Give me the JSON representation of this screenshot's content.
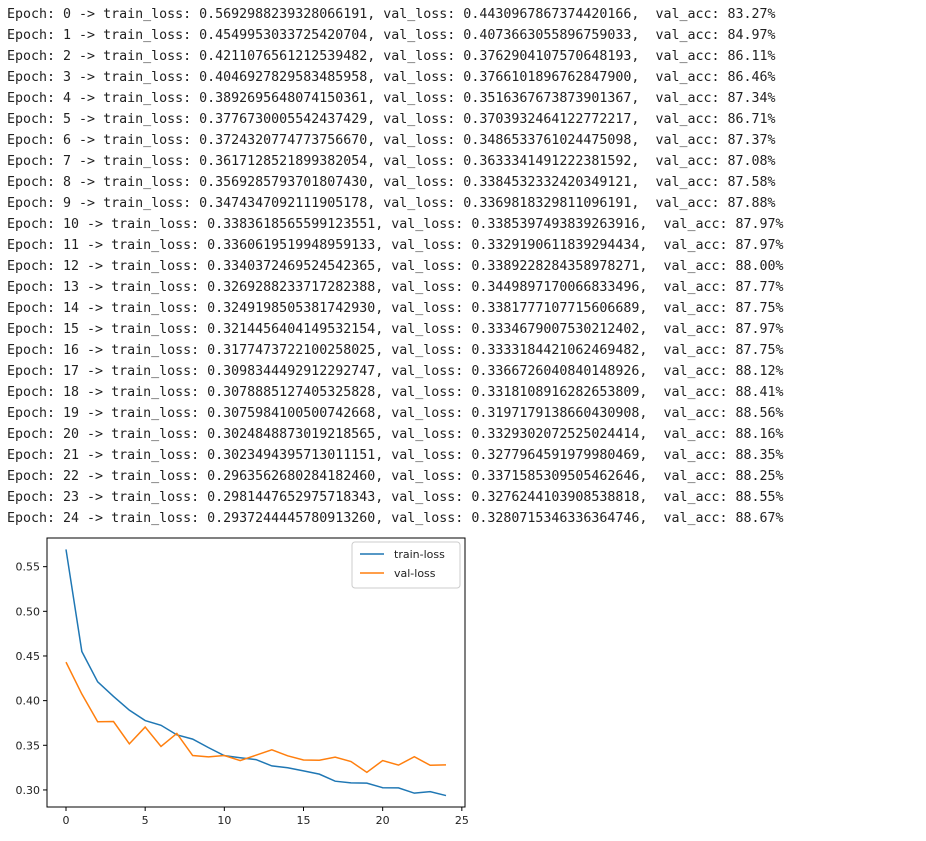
{
  "log": {
    "lines": [
      "Epoch: 0 -> train_loss: 0.5692988239328066191, val_loss: 0.4430967867374420166,  val_acc: 83.27%",
      "Epoch: 1 -> train_loss: 0.4549953033725420704, val_loss: 0.4073663055896759033,  val_acc: 84.97%",
      "Epoch: 2 -> train_loss: 0.4211076561212539482, val_loss: 0.3762904107570648193,  val_acc: 86.11%",
      "Epoch: 3 -> train_loss: 0.4046927829583485958, val_loss: 0.3766101896762847900,  val_acc: 86.46%",
      "Epoch: 4 -> train_loss: 0.3892695648074150361, val_loss: 0.3516367673873901367,  val_acc: 87.34%",
      "Epoch: 5 -> train_loss: 0.3776730005542437429, val_loss: 0.3703932464122772217,  val_acc: 86.71%",
      "Epoch: 6 -> train_loss: 0.3724320774773756670, val_loss: 0.3486533761024475098,  val_acc: 87.37%",
      "Epoch: 7 -> train_loss: 0.3617128521899382054, val_loss: 0.3633341491222381592,  val_acc: 87.08%",
      "Epoch: 8 -> train_loss: 0.3569285793701807430, val_loss: 0.3384532332420349121,  val_acc: 87.58%",
      "Epoch: 9 -> train_loss: 0.3474347092111905178, val_loss: 0.3369818329811096191,  val_acc: 87.88%",
      "Epoch: 10 -> train_loss: 0.3383618565599123551, val_loss: 0.3385397493839263916,  val_acc: 87.97%",
      "Epoch: 11 -> train_loss: 0.3360619519948959133, val_loss: 0.3329190611839294434,  val_acc: 87.97%",
      "Epoch: 12 -> train_loss: 0.3340372469524542365, val_loss: 0.3389228284358978271,  val_acc: 88.00%",
      "Epoch: 13 -> train_loss: 0.3269288233717282388, val_loss: 0.3449897170066833496,  val_acc: 87.77%",
      "Epoch: 14 -> train_loss: 0.3249198505381742930, val_loss: 0.3381777107715606689,  val_acc: 87.75%",
      "Epoch: 15 -> train_loss: 0.3214456404149532154, val_loss: 0.3334679007530212402,  val_acc: 87.97%",
      "Epoch: 16 -> train_loss: 0.3177473722100258025, val_loss: 0.3333184421062469482,  val_acc: 87.75%",
      "Epoch: 17 -> train_loss: 0.3098344492912292747, val_loss: 0.3366726040840148926,  val_acc: 88.12%",
      "Epoch: 18 -> train_loss: 0.3078885127405325828, val_loss: 0.3318108916282653809,  val_acc: 88.41%",
      "Epoch: 19 -> train_loss: 0.3075984100500742668, val_loss: 0.3197179138660430908,  val_acc: 88.56%",
      "Epoch: 20 -> train_loss: 0.3024848873019218565, val_loss: 0.3329302072525024414,  val_acc: 88.16%",
      "Epoch: 21 -> train_loss: 0.3023494395713011151, val_loss: 0.3277964591979980469,  val_acc: 88.35%",
      "Epoch: 22 -> train_loss: 0.2963562680284182460, val_loss: 0.3371585309505462646,  val_acc: 88.25%",
      "Epoch: 23 -> train_loss: 0.2981447652975718343, val_loss: 0.3276244103908538818,  val_acc: 88.55%",
      "Epoch: 24 -> train_loss: 0.2937244445780913260, val_loss: 0.3280715346336364746,  val_acc: 88.67%"
    ]
  },
  "chart_data": {
    "type": "line",
    "x": [
      0,
      1,
      2,
      3,
      4,
      5,
      6,
      7,
      8,
      9,
      10,
      11,
      12,
      13,
      14,
      15,
      16,
      17,
      18,
      19,
      20,
      21,
      22,
      23,
      24
    ],
    "series": [
      {
        "name": "train-loss",
        "color": "#1f77b4",
        "values": [
          0.5693,
          0.455,
          0.4211,
          0.4047,
          0.3893,
          0.3777,
          0.3724,
          0.3617,
          0.3569,
          0.3474,
          0.3384,
          0.3361,
          0.334,
          0.3269,
          0.3249,
          0.3214,
          0.3177,
          0.3098,
          0.3079,
          0.3076,
          0.3025,
          0.3023,
          0.2964,
          0.2981,
          0.2937
        ]
      },
      {
        "name": "val-loss",
        "color": "#ff7f0e",
        "values": [
          0.4431,
          0.4074,
          0.3763,
          0.3766,
          0.3516,
          0.3704,
          0.3487,
          0.3633,
          0.3385,
          0.337,
          0.3385,
          0.3329,
          0.3389,
          0.345,
          0.3382,
          0.3335,
          0.3333,
          0.3367,
          0.3318,
          0.3197,
          0.3329,
          0.3278,
          0.3372,
          0.3276,
          0.3281
        ]
      }
    ],
    "xticks": [
      0,
      5,
      10,
      15,
      20,
      25
    ],
    "yticks": [
      0.3,
      0.35,
      0.4,
      0.45,
      0.5,
      0.55
    ],
    "ytick_labels": [
      "0.30",
      "0.35",
      "0.40",
      "0.45",
      "0.50",
      "0.55"
    ],
    "xlim": [
      -1.2,
      25.2
    ],
    "ylim": [
      0.2809,
      0.5821
    ],
    "grid": false,
    "legend": "top-right",
    "title": "",
    "xlabel": "",
    "ylabel": ""
  }
}
